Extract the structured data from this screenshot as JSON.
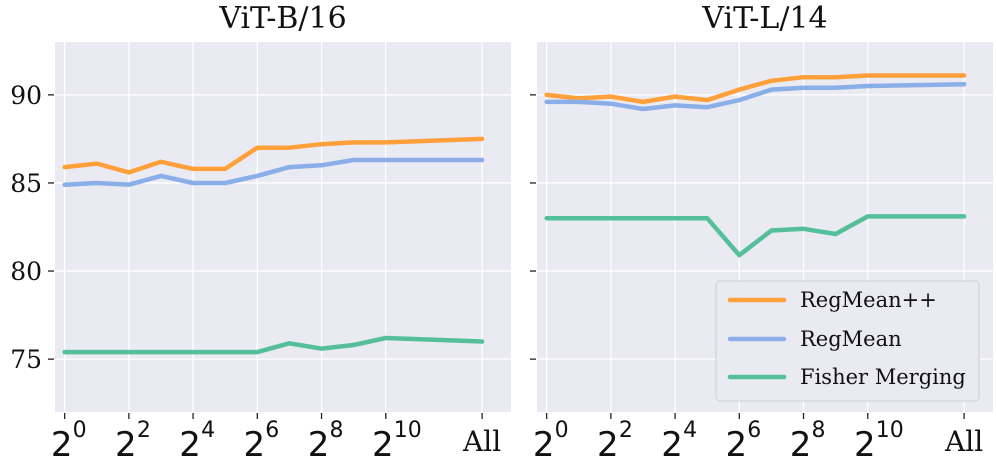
{
  "chart_data": [
    {
      "type": "line",
      "title": "ViT-B/16",
      "categories": [
        "2^0",
        "2^1",
        "2^2",
        "2^3",
        "2^4",
        "2^5",
        "2^6",
        "2^7",
        "2^8",
        "2^9",
        "2^10",
        "All"
      ],
      "x_tick_labels": [
        {
          "base": "2",
          "exp": "0"
        },
        {
          "base": "2",
          "exp": "2"
        },
        {
          "base": "2",
          "exp": "4"
        },
        {
          "base": "2",
          "exp": "6"
        },
        {
          "base": "2",
          "exp": "8"
        },
        {
          "base": "2",
          "exp": "10"
        },
        {
          "base": "All",
          "exp": ""
        }
      ],
      "ylim": [
        72,
        93
      ],
      "yticks": [
        75,
        80,
        85,
        90
      ],
      "grid": true,
      "series": [
        {
          "name": "RegMean++",
          "color": "#ffa03a",
          "points": [
            [
              0,
              85.9
            ],
            [
              1,
              86.1
            ],
            [
              2,
              85.6
            ],
            [
              3,
              86.2
            ],
            [
              4,
              85.8
            ],
            [
              5,
              85.8
            ],
            [
              6,
              87.0
            ],
            [
              7,
              87.0
            ],
            [
              8,
              87.2
            ],
            [
              9,
              87.3
            ],
            [
              10,
              87.3
            ],
            [
              13,
              87.5
            ]
          ]
        },
        {
          "name": "RegMean",
          "color": "#8aaee8",
          "points": [
            [
              0,
              84.9
            ],
            [
              1,
              85.0
            ],
            [
              2,
              84.9
            ],
            [
              3,
              85.4
            ],
            [
              4,
              85.0
            ],
            [
              5,
              85.0
            ],
            [
              6,
              85.4
            ],
            [
              7,
              85.9
            ],
            [
              8,
              86.0
            ],
            [
              9,
              86.3
            ],
            [
              10,
              86.3
            ],
            [
              13,
              86.3
            ]
          ]
        },
        {
          "name": "Fisher Merging",
          "color": "#55bf9a",
          "points": [
            [
              0,
              75.4
            ],
            [
              1,
              75.4
            ],
            [
              2,
              75.4
            ],
            [
              3,
              75.4
            ],
            [
              4,
              75.4
            ],
            [
              5,
              75.4
            ],
            [
              6,
              75.4
            ],
            [
              7,
              75.9
            ],
            [
              8,
              75.6
            ],
            [
              9,
              75.8
            ],
            [
              10,
              76.2
            ],
            [
              13,
              76.0
            ]
          ]
        }
      ]
    },
    {
      "type": "line",
      "title": "ViT-L/14",
      "categories": [
        "2^0",
        "2^1",
        "2^2",
        "2^3",
        "2^4",
        "2^5",
        "2^6",
        "2^7",
        "2^8",
        "2^9",
        "2^10",
        "All"
      ],
      "x_tick_labels": [
        {
          "base": "2",
          "exp": "0"
        },
        {
          "base": "2",
          "exp": "2"
        },
        {
          "base": "2",
          "exp": "4"
        },
        {
          "base": "2",
          "exp": "6"
        },
        {
          "base": "2",
          "exp": "8"
        },
        {
          "base": "2",
          "exp": "10"
        },
        {
          "base": "All",
          "exp": ""
        }
      ],
      "ylim": [
        72,
        93
      ],
      "yticks": [
        75,
        80,
        85,
        90
      ],
      "grid": true,
      "series": [
        {
          "name": "RegMean++",
          "color": "#ffa03a",
          "points": [
            [
              0,
              90.0
            ],
            [
              1,
              89.8
            ],
            [
              2,
              89.9
            ],
            [
              3,
              89.6
            ],
            [
              4,
              89.9
            ],
            [
              5,
              89.7
            ],
            [
              6,
              90.3
            ],
            [
              7,
              90.8
            ],
            [
              8,
              91.0
            ],
            [
              9,
              91.0
            ],
            [
              10,
              91.1
            ],
            [
              13,
              91.1
            ]
          ]
        },
        {
          "name": "RegMean",
          "color": "#8aaee8",
          "points": [
            [
              0,
              89.6
            ],
            [
              1,
              89.6
            ],
            [
              2,
              89.5
            ],
            [
              3,
              89.2
            ],
            [
              4,
              89.4
            ],
            [
              5,
              89.3
            ],
            [
              6,
              89.7
            ],
            [
              7,
              90.3
            ],
            [
              8,
              90.4
            ],
            [
              9,
              90.4
            ],
            [
              10,
              90.5
            ],
            [
              13,
              90.6
            ]
          ]
        },
        {
          "name": "Fisher Merging",
          "color": "#55bf9a",
          "points": [
            [
              0,
              83.0
            ],
            [
              1,
              83.0
            ],
            [
              2,
              83.0
            ],
            [
              3,
              83.0
            ],
            [
              4,
              83.0
            ],
            [
              5,
              83.0
            ],
            [
              6,
              80.9
            ],
            [
              7,
              82.3
            ],
            [
              8,
              82.4
            ],
            [
              9,
              82.1
            ],
            [
              10,
              83.1
            ],
            [
              13,
              83.1
            ]
          ]
        }
      ]
    }
  ],
  "legend": {
    "placement": "lower-right of second panel",
    "entries": [
      {
        "label": "RegMean++",
        "color": "#ffa03a"
      },
      {
        "label": "RegMean",
        "color": "#8aaee8"
      },
      {
        "label": "Fisher Merging",
        "color": "#55bf9a"
      }
    ]
  }
}
